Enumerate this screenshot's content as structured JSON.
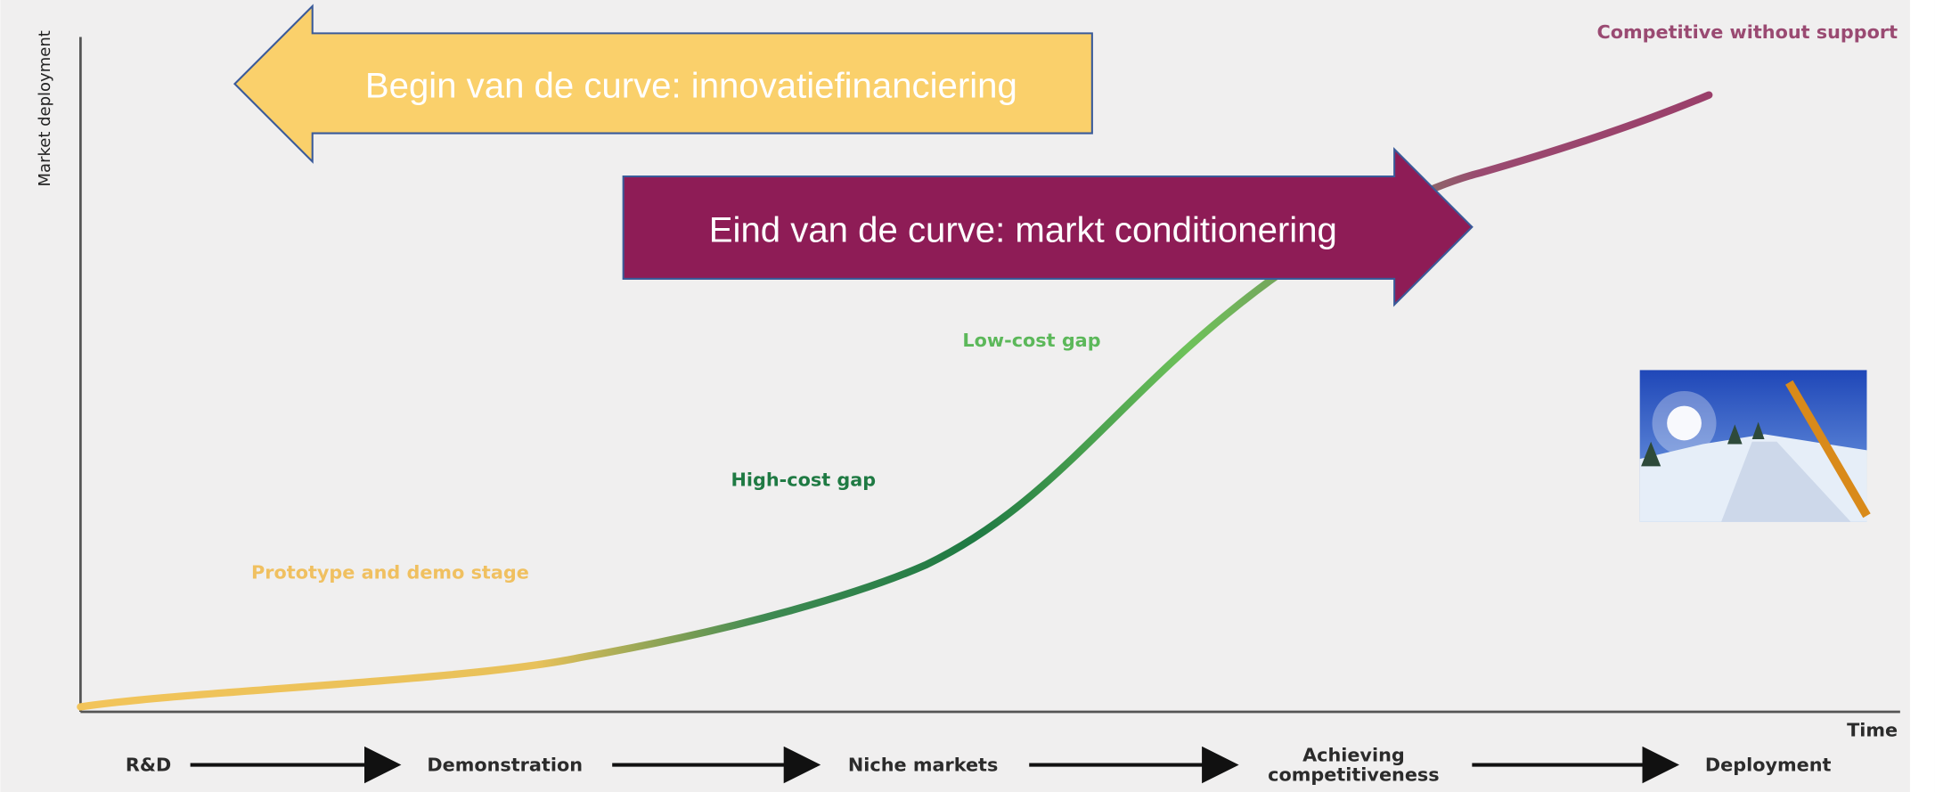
{
  "axes": {
    "y_label": "Market deployment",
    "x_label": "Time"
  },
  "annotations": {
    "top_right": "Competitive without support",
    "low_cost": "Low-cost gap",
    "high_cost": "High-cost gap",
    "prototype": "Prototype and demo stage"
  },
  "banners": {
    "begin": "Begin van de curve: innovatiefinanciering",
    "end": "Eind van de curve: markt conditionering"
  },
  "stages": [
    {
      "lines": [
        "R&D"
      ]
    },
    {
      "lines": [
        "Demonstration"
      ]
    },
    {
      "lines": [
        "Niche markets"
      ]
    },
    {
      "lines": [
        "Achieving",
        "competitiveness"
      ]
    },
    {
      "lines": [
        "Deployment"
      ]
    }
  ]
}
